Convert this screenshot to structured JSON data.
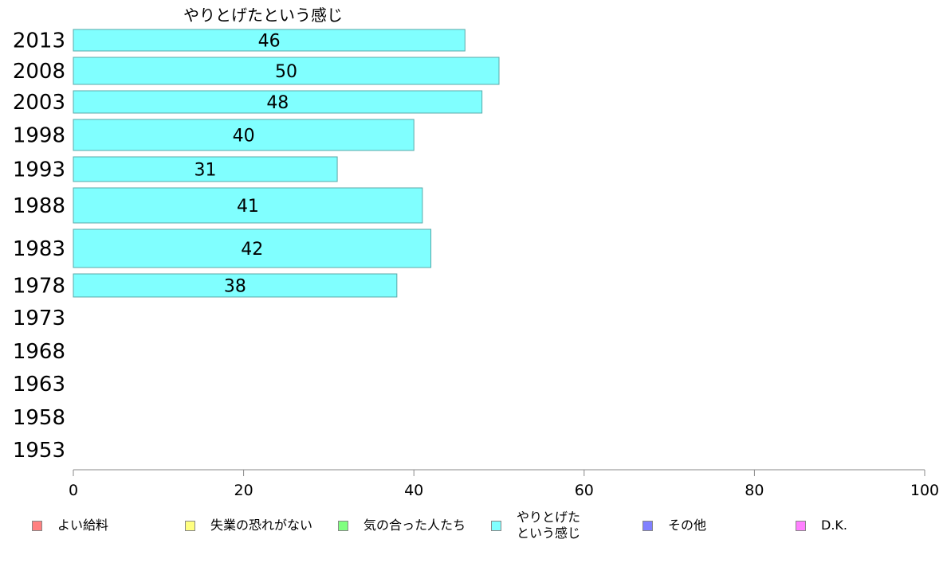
{
  "chart_data": {
    "type": "bar",
    "title": "やりとげたという感じ",
    "categories": [
      "2013",
      "2008",
      "2003",
      "1998",
      "1993",
      "1988",
      "1983",
      "1978",
      "1973",
      "1968",
      "1963",
      "1958",
      "1953"
    ],
    "values": [
      46,
      50,
      48,
      40,
      31,
      41,
      42,
      38,
      null,
      null,
      null,
      null,
      null
    ],
    "value_labels": [
      "46",
      "50",
      "48",
      "40",
      "31",
      "41",
      "42",
      "38",
      "",
      "",
      "",
      "",
      ""
    ],
    "xlim": [
      0,
      100
    ],
    "x_ticks": [
      "0",
      "20",
      "40",
      "60",
      "80",
      "100"
    ],
    "bar_color": "#80ffff",
    "bar_edge_color": "#5aa8a8",
    "legend": [
      {
        "label": "よい給料",
        "color": "#ff8080"
      },
      {
        "label": "失業の恐れがない",
        "color": "#ffff80"
      },
      {
        "label": "気の合った人たち",
        "color": "#80ff80"
      },
      {
        "label": "やりとげた\nという感じ",
        "color": "#80ffff"
      },
      {
        "label": "その他",
        "color": "#8080ff"
      },
      {
        "label": "D.K.",
        "color": "#ff80ff"
      }
    ]
  }
}
